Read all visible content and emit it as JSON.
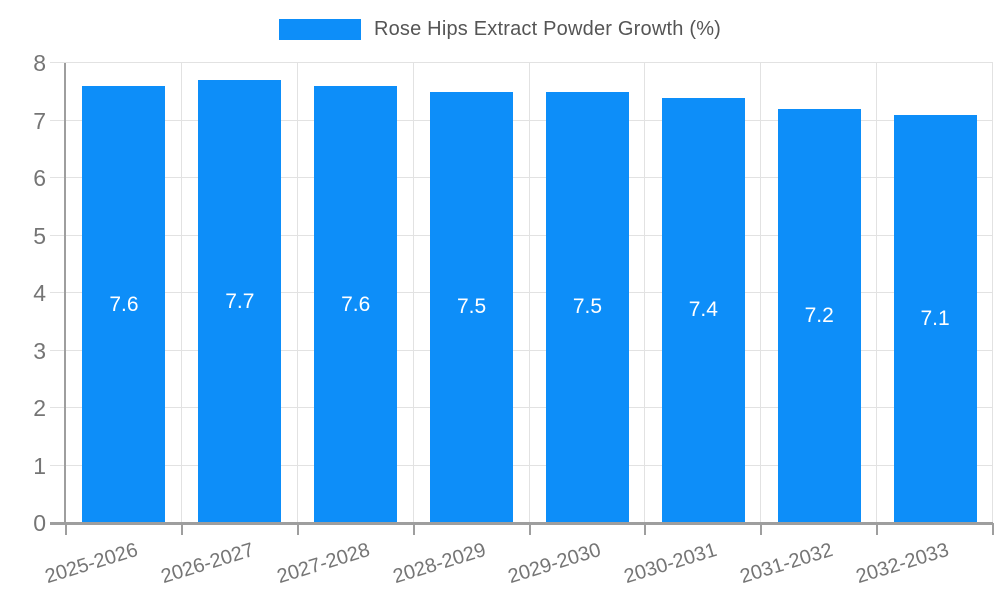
{
  "chart_data": {
    "type": "bar",
    "title": "Rose Hips Extract Powder Growth (%)",
    "categories": [
      "2025-2026",
      "2026-2027",
      "2027-2028",
      "2028-2029",
      "2029-2030",
      "2030-2031",
      "2031-2032",
      "2032-2033"
    ],
    "values": [
      7.6,
      7.7,
      7.6,
      7.5,
      7.5,
      7.4,
      7.2,
      7.1
    ],
    "bar_labels": [
      "7.6",
      "7.7",
      "7.6",
      "7.5",
      "7.5",
      "7.4",
      "7.2",
      "7.1"
    ],
    "xlabel": "",
    "ylabel": "",
    "ylim": [
      0,
      8
    ],
    "ytick_step": 1,
    "ytick_labels": [
      "0",
      "1",
      "2",
      "3",
      "4",
      "5",
      "6",
      "7",
      "8"
    ],
    "grid": "on",
    "legend_position": "top-center",
    "bar_color": "#0d8ef9",
    "bar_label_color": "#ffffff",
    "axis_line_color": "#9e9e9e",
    "gridline_color": "#e2e2e2",
    "axis_text_color": "#757575",
    "legend_text_color": "#555555"
  }
}
